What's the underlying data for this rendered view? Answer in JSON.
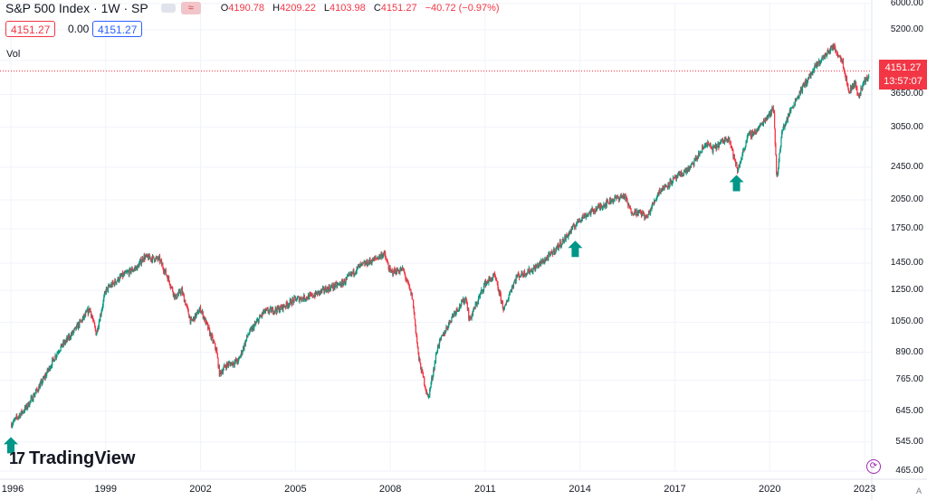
{
  "header": {
    "symbol": "S&P 500 Index · 1W · SP",
    "wave_glyph": "≈",
    "ohlc": {
      "o_label": "O",
      "o_value": "4190.78",
      "h_label": "H",
      "h_value": "4209.22",
      "l_label": "L",
      "l_value": "4103.98",
      "c_label": "C",
      "c_value": "4151.27",
      "change": "−40.72 (−0.97%)"
    }
  },
  "price_boxes": {
    "sell": "4151.27",
    "spread": "0.00",
    "buy": "4151.27"
  },
  "volume_label": "Vol",
  "last_price": {
    "price": "4151.27",
    "countdown": "13:57:07"
  },
  "branding": {
    "logo_text": "TradingView",
    "auto_label": "A"
  },
  "colors": {
    "up": "#089981",
    "down": "#f23645",
    "buy": "#2962ff",
    "arrow": "#009688"
  },
  "chart_data": {
    "type": "line",
    "title": "S&P 500 Index · 1W · SP",
    "y_scale": "log",
    "ylim": [
      465,
      6000
    ],
    "y_ticks": [
      6000,
      5200,
      4400,
      3650,
      3050,
      2450,
      2050,
      1750,
      1450,
      1250,
      1050,
      890,
      765,
      645,
      545,
      465
    ],
    "y_tick_labels": [
      "6000.00",
      "5200.00",
      "4400.00",
      "3650.00",
      "3050.00",
      "2450.00",
      "2050.00",
      "1750.00",
      "1450.00",
      "1250.00",
      "1050.00",
      "890.00",
      "765.00",
      "645.00",
      "545.00",
      "465.00"
    ],
    "x_ticks": [
      "1996",
      "1999",
      "2002",
      "2005",
      "2008",
      "2011",
      "2014",
      "2017",
      "2020",
      "2023"
    ],
    "x_tick_years": [
      1996,
      1999,
      2002,
      2005,
      2008,
      2011,
      2014,
      2017,
      2020,
      2023
    ],
    "xlim": [
      1996.0,
      2023.5
    ],
    "series": [
      {
        "x": [
          1996.0,
          1996.5,
          1997.0,
          1997.5,
          1998.0,
          1998.5,
          1998.7,
          1999.0,
          1999.5,
          2000.0,
          2000.2,
          2000.7,
          2001.0,
          2001.2,
          2001.4,
          2001.7,
          2002.0,
          2002.5,
          2002.6,
          2002.8,
          2003.2,
          2003.5,
          2004.0,
          2004.5,
          2005.0,
          2005.5,
          2006.0,
          2006.5,
          2007.0,
          2007.5,
          2007.8,
          2008.0,
          2008.4,
          2008.7,
          2008.9,
          2009.2,
          2009.5,
          2010.0,
          2010.4,
          2010.5,
          2011.0,
          2011.3,
          2011.6,
          2011.8,
          2012.0,
          2012.5,
          2013.0,
          2013.5,
          2014.0,
          2014.5,
          2015.0,
          2015.4,
          2015.6,
          2016.0,
          2016.1,
          2016.5,
          2017.0,
          2017.5,
          2018.0,
          2018.2,
          2018.7,
          2018.98,
          2019.3,
          2019.6,
          2020.0,
          2020.13,
          2020.22,
          2020.4,
          2020.7,
          2021.0,
          2021.5,
          2022.0,
          2022.3,
          2022.5,
          2022.7,
          2022.8,
          2023.0,
          2023.3,
          2023.5
        ],
        "values": [
          600,
          660,
          760,
          900,
          1000,
          1130,
          985,
          1250,
          1350,
          1420,
          1500,
          1480,
          1320,
          1200,
          1250,
          1050,
          1130,
          900,
          790,
          830,
          850,
          980,
          1110,
          1130,
          1190,
          1210,
          1260,
          1300,
          1420,
          1480,
          1530,
          1380,
          1400,
          1200,
          860,
          690,
          920,
          1100,
          1200,
          1060,
          1300,
          1350,
          1120,
          1250,
          1350,
          1400,
          1500,
          1650,
          1850,
          1950,
          2050,
          2100,
          1930,
          1900,
          1850,
          2150,
          2300,
          2450,
          2800,
          2700,
          2900,
          2400,
          2900,
          3000,
          3300,
          3380,
          2300,
          3000,
          3400,
          3750,
          4300,
          4750,
          4400,
          3700,
          3900,
          3600,
          3950,
          4100,
          4151
        ]
      }
    ],
    "annotations": [
      {
        "type": "arrow-up",
        "x": 1996.0,
        "y": 560
      },
      {
        "type": "arrow-up",
        "x": 2013.85,
        "y": 1640
      },
      {
        "type": "arrow-up",
        "x": 2018.95,
        "y": 2350
      }
    ],
    "last_value": 4151.27
  }
}
